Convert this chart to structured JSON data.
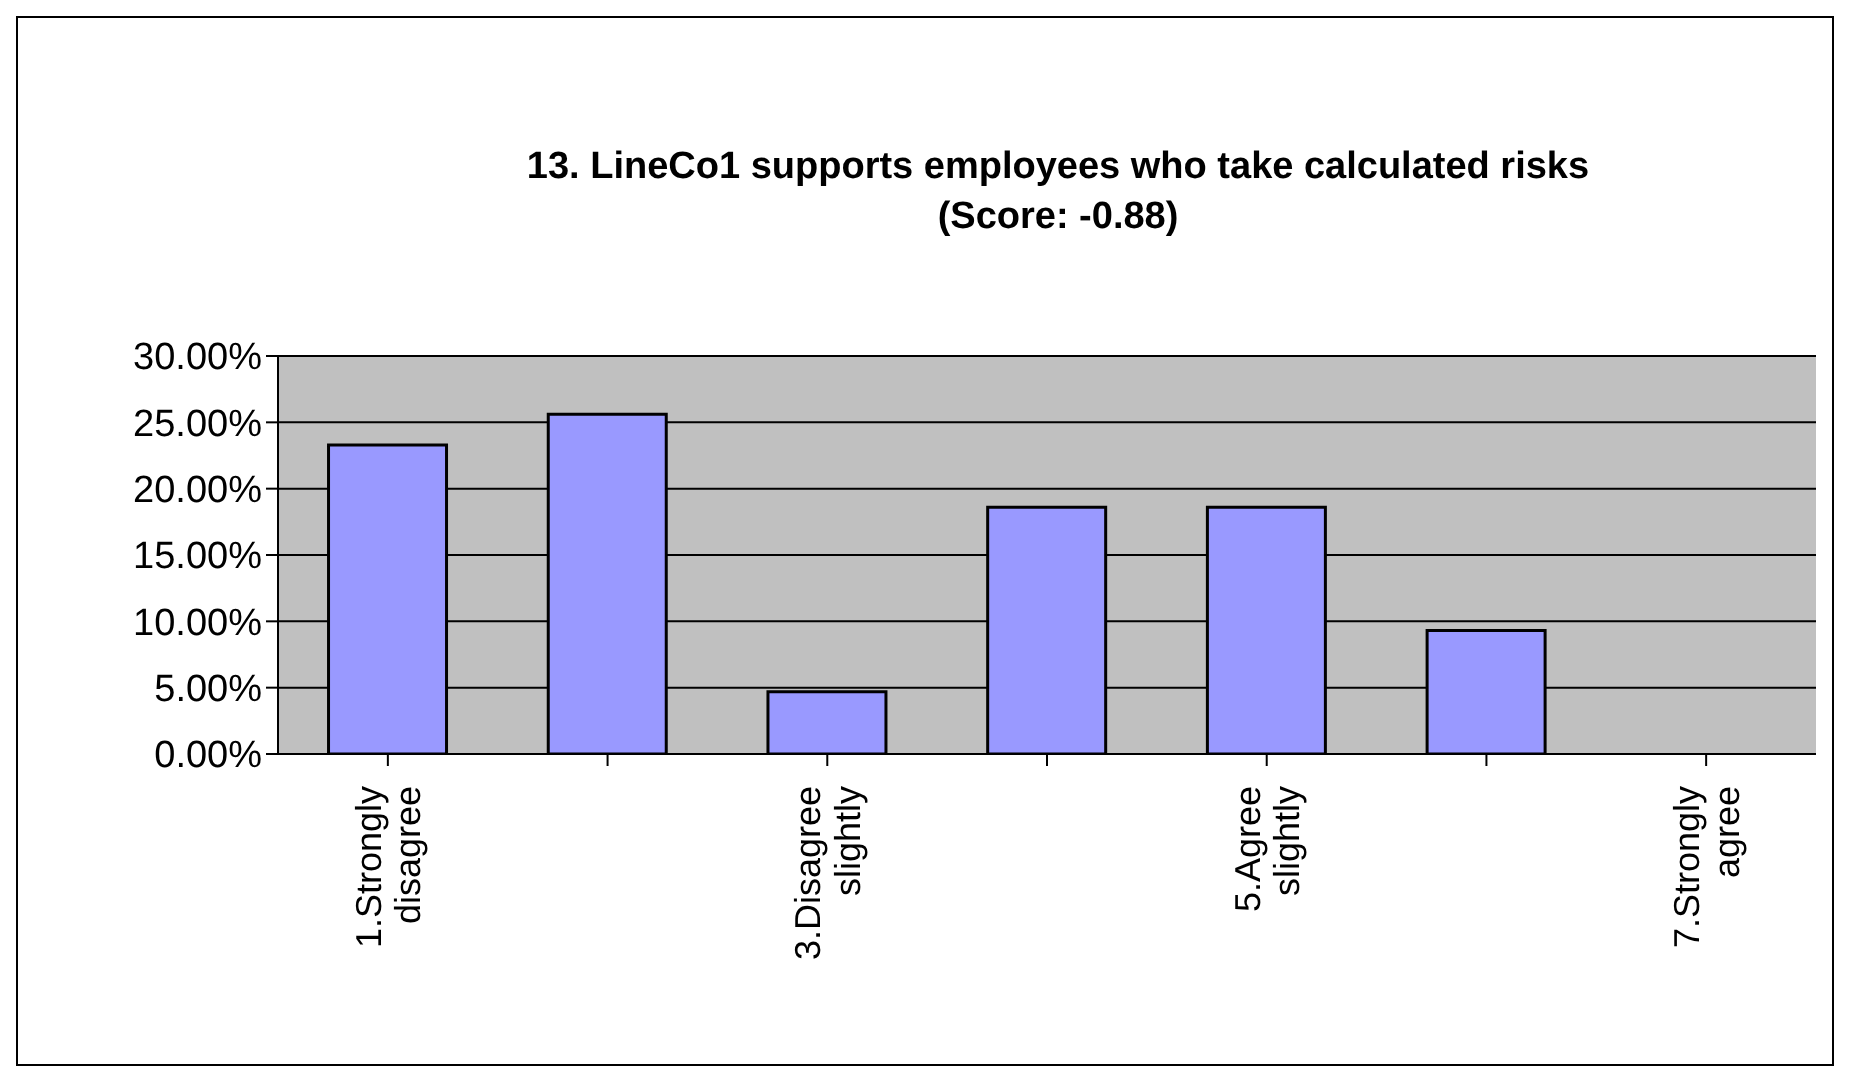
{
  "chart_data": {
    "type": "bar",
    "title": "13. LineCo1 supports employees who take calculated risks (Score: -0.88)",
    "categories": [
      "1.Strongly disagree",
      null,
      "3.Disagree slightly",
      null,
      "5.Agree slightly",
      null,
      "7.Strongly agree"
    ],
    "values": [
      23.3,
      25.6,
      4.7,
      18.6,
      18.6,
      9.3,
      0
    ],
    "color": "#9999ff",
    "ylim": [
      0,
      30
    ],
    "yticks": [
      {
        "value": 0,
        "label": "0.00%"
      },
      {
        "value": 5,
        "label": "5.00%"
      },
      {
        "value": 10,
        "label": "10.00%"
      },
      {
        "value": 15,
        "label": "15.00%"
      },
      {
        "value": 20,
        "label": "20.00%"
      },
      {
        "value": 25,
        "label": "25.00%"
      },
      {
        "value": 30,
        "label": "30.00%"
      }
    ],
    "grid": "y",
    "legend": false
  }
}
